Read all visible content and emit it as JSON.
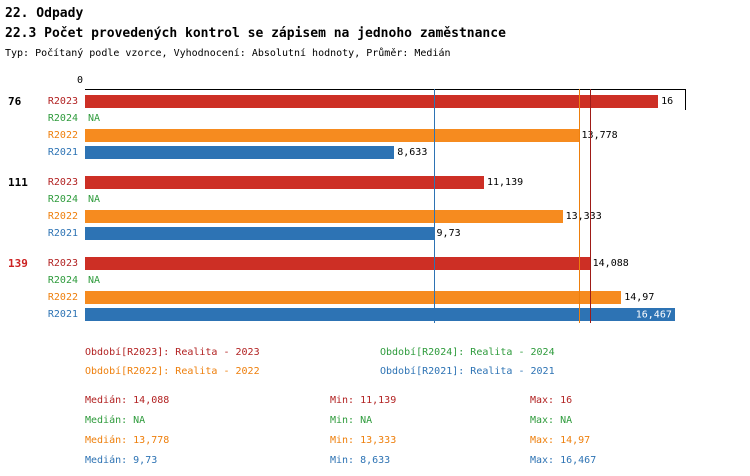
{
  "header": {
    "title_line1": "22. Odpady",
    "title_line2": "22.3 Počet provedených kontrol se zápisem na jednoho zaměstnance",
    "subtitle": "Typ: Počítaný podle vzorce, Vyhodnocení: Absolutní hodnoty, Průměr: Medián"
  },
  "chart_data": {
    "type": "bar",
    "orientation": "horizontal",
    "title": "22.3 Počet provedených kontrol se zápisem na jednoho zaměstnance",
    "xlabel": "",
    "ylabel": "",
    "x_axis": {
      "min": 0,
      "max": 16.75,
      "zero_label": "0"
    },
    "grid": false,
    "series_order": [
      "R2023",
      "R2024",
      "R2022",
      "R2021"
    ],
    "colors": {
      "r2023": {
        "fill": "#cd2f25",
        "text": "#b22222",
        "median": "#9e1b17"
      },
      "r2024": {
        "fill": "#2e9b3c",
        "text": "#2e9b3c",
        "median": "#2e9b3c"
      },
      "r2022": {
        "fill": "#f68b1f",
        "text": "#ee7f0c",
        "median": "#ee7f0c"
      },
      "r2021": {
        "fill": "#2d73b4",
        "text": "#2d73b4",
        "median": "#2d73b4"
      },
      "highlight_group_label": "#cc2222",
      "axis": "#000000"
    },
    "groups": [
      {
        "label": "76",
        "highlighted": false,
        "bars": [
          {
            "series": "R2023",
            "color_key": "r2023",
            "value": 16,
            "value_label": "16",
            "label_inside": false
          },
          {
            "series": "R2024",
            "color_key": "r2024",
            "value": null,
            "value_label": "NA",
            "label_inside": false
          },
          {
            "series": "R2022",
            "color_key": "r2022",
            "value": 13.778,
            "value_label": "13,778",
            "label_inside": false
          },
          {
            "series": "R2021",
            "color_key": "r2021",
            "value": 8.633,
            "value_label": "8,633",
            "label_inside": false
          }
        ]
      },
      {
        "label": "111",
        "highlighted": false,
        "bars": [
          {
            "series": "R2023",
            "color_key": "r2023",
            "value": 11.139,
            "value_label": "11,139",
            "label_inside": false
          },
          {
            "series": "R2024",
            "color_key": "r2024",
            "value": null,
            "value_label": "NA",
            "label_inside": false
          },
          {
            "series": "R2022",
            "color_key": "r2022",
            "value": 13.333,
            "value_label": "13,333",
            "label_inside": false
          },
          {
            "series": "R2021",
            "color_key": "r2021",
            "value": 9.73,
            "value_label": "9,73",
            "label_inside": false
          }
        ]
      },
      {
        "label": "139",
        "highlighted": true,
        "bars": [
          {
            "series": "R2023",
            "color_key": "r2023",
            "value": 14.088,
            "value_label": "14,088",
            "label_inside": false
          },
          {
            "series": "R2024",
            "color_key": "r2024",
            "value": null,
            "value_label": "NA",
            "label_inside": false
          },
          {
            "series": "R2022",
            "color_key": "r2022",
            "value": 14.97,
            "value_label": "14,97",
            "label_inside": false
          },
          {
            "series": "R2021",
            "color_key": "r2021",
            "value": 16.467,
            "value_label": "16,467",
            "label_inside": true
          }
        ]
      }
    ],
    "median_lines": [
      {
        "value": 14.088,
        "color_key": "r2023"
      },
      {
        "value": 13.778,
        "color_key": "r2022"
      },
      {
        "value": 9.73,
        "color_key": "r2021"
      }
    ]
  },
  "legend": {
    "items": [
      {
        "color_key": "r2023",
        "label": "Období[R2023]: Realita - 2023"
      },
      {
        "color_key": "r2024",
        "label": "Období[R2024]: Realita - 2024"
      },
      {
        "color_key": "r2022",
        "label": "Období[R2022]: Realita - 2022"
      },
      {
        "color_key": "r2021",
        "label": "Období[R2021]: Realita - 2021"
      }
    ]
  },
  "stats": {
    "rows": [
      {
        "color_key": "r2023",
        "median": "Medián: 14,088",
        "min": "Min: 11,139",
        "max": "Max: 16"
      },
      {
        "color_key": "r2024",
        "median": "Medián: NA",
        "min": "Min: NA",
        "max": "Max: NA"
      },
      {
        "color_key": "r2022",
        "median": "Medián: 13,778",
        "min": "Min: 13,333",
        "max": "Max: 14,97"
      },
      {
        "color_key": "r2021",
        "median": "Medián: 9,73",
        "min": "Min: 8,633",
        "max": "Max: 16,467"
      }
    ]
  }
}
